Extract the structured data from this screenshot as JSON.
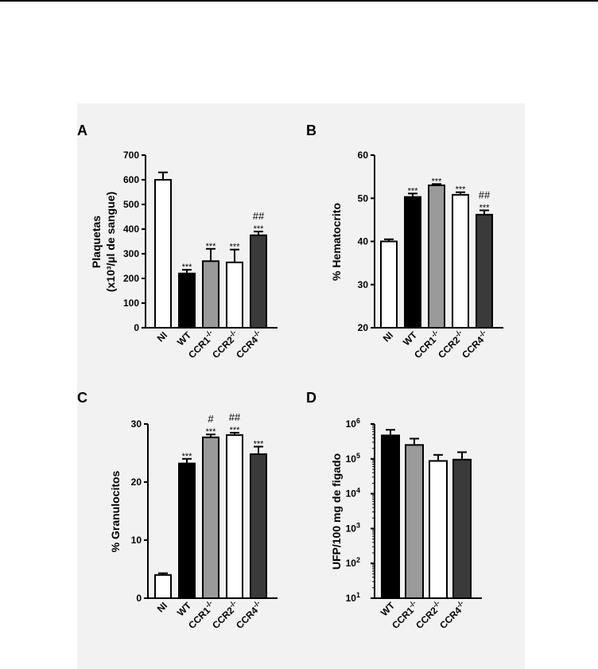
{
  "figure": {
    "colors": {
      "NI": "#ffffff",
      "WT": "#000000",
      "CCR1": "#9a9a9a",
      "CCR2": "#ffffff",
      "CCR4": "#3a3a3a",
      "axis": "#000000",
      "background": "#f2f2f2"
    }
  },
  "chart_data": [
    {
      "panel": "A",
      "type": "bar",
      "ylabel_lines": [
        "Plaquetas",
        "(x10³/µl de sangue)"
      ],
      "ylim": [
        0,
        700
      ],
      "yticks": [
        0,
        100,
        200,
        300,
        400,
        500,
        600,
        700
      ],
      "categories": [
        "NI",
        "WT",
        "CCR1-/-",
        "CCR2-/-",
        "CCR4-/-"
      ],
      "category_labels": [
        {
          "base": "NI",
          "sup": ""
        },
        {
          "base": "WT",
          "sup": ""
        },
        {
          "base": "CCR1",
          "sup": "-/-"
        },
        {
          "base": "CCR2",
          "sup": "-/-"
        },
        {
          "base": "CCR4",
          "sup": "-/-"
        }
      ],
      "values": [
        600,
        220,
        270,
        265,
        375
      ],
      "errors": [
        30,
        15,
        50,
        52,
        15
      ],
      "annotations": [
        [],
        [
          "***"
        ],
        [
          "***"
        ],
        [
          "***"
        ],
        [
          "***",
          "##"
        ]
      ]
    },
    {
      "panel": "B",
      "type": "bar",
      "ylabel_lines": [
        "% Hematocrito"
      ],
      "ylim": [
        20,
        60
      ],
      "yticks": [
        20,
        30,
        40,
        50,
        60
      ],
      "categories": [
        "NI",
        "WT",
        "CCR1-/-",
        "CCR2-/-",
        "CCR4-/-"
      ],
      "category_labels": [
        {
          "base": "NI",
          "sup": ""
        },
        {
          "base": "WT",
          "sup": ""
        },
        {
          "base": "CCR1",
          "sup": "-/-"
        },
        {
          "base": "CCR2",
          "sup": "-/-"
        },
        {
          "base": "CCR4",
          "sup": "-/-"
        }
      ],
      "values": [
        40,
        50.3,
        53,
        50.8,
        46.2
      ],
      "errors": [
        0.5,
        0.8,
        0.3,
        0.6,
        1.0
      ],
      "annotations": [
        [],
        [
          "***"
        ],
        [
          "***"
        ],
        [
          "***"
        ],
        [
          "***",
          "##"
        ]
      ]
    },
    {
      "panel": "C",
      "type": "bar",
      "ylabel_lines": [
        "% Granulocitos"
      ],
      "ylim": [
        0,
        30
      ],
      "yticks": [
        0,
        10,
        20,
        30
      ],
      "categories": [
        "NI",
        "WT",
        "CCR1-/-",
        "CCR2-/-",
        "CCR4-/-"
      ],
      "category_labels": [
        {
          "base": "NI",
          "sup": ""
        },
        {
          "base": "WT",
          "sup": ""
        },
        {
          "base": "CCR1",
          "sup": "-/-"
        },
        {
          "base": "CCR2",
          "sup": "-/-"
        },
        {
          "base": "CCR4",
          "sup": "-/-"
        }
      ],
      "values": [
        4,
        23.2,
        27.7,
        28.1,
        24.8
      ],
      "errors": [
        0.3,
        0.8,
        0.5,
        0.4,
        1.3
      ],
      "annotations": [
        [],
        [
          "***"
        ],
        [
          "***",
          "#"
        ],
        [
          "***",
          "##"
        ],
        [
          "***"
        ]
      ]
    },
    {
      "panel": "D",
      "type": "bar",
      "ylabel_lines": [
        "UFP/100 mg de figado"
      ],
      "yscale": "log",
      "ylim": [
        10,
        1000000
      ],
      "yticks": [
        10,
        100,
        1000,
        10000,
        100000,
        1000000
      ],
      "ytick_labels": [
        {
          "base": "10",
          "sup": "1"
        },
        {
          "base": "10",
          "sup": "2"
        },
        {
          "base": "10",
          "sup": "3"
        },
        {
          "base": "10",
          "sup": "4"
        },
        {
          "base": "10",
          "sup": "5"
        },
        {
          "base": "10",
          "sup": "6"
        }
      ],
      "categories": [
        "WT",
        "CCR1-/-",
        "CCR2-/-",
        "CCR4-/-"
      ],
      "category_labels": [
        {
          "base": "WT",
          "sup": ""
        },
        {
          "base": "CCR1",
          "sup": "-/-"
        },
        {
          "base": "CCR2",
          "sup": "-/-"
        },
        {
          "base": "CCR4",
          "sup": "-/-"
        }
      ],
      "values": [
        470000,
        250000,
        87000,
        95000
      ],
      "errors_upper": [
        680000,
        380000,
        130000,
        155000
      ],
      "annotations": [
        [],
        [],
        [],
        []
      ]
    }
  ]
}
